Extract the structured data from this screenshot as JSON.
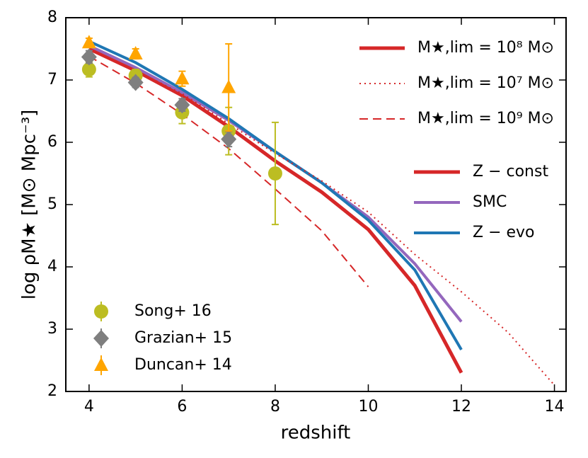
{
  "chart_data": {
    "type": "line",
    "xlabel": "redshift",
    "ylabel": "log  ρM★  [M⊙ Mpc⁻³]",
    "xlim": [
      3.5,
      14.25
    ],
    "ylim": [
      2,
      8
    ],
    "xticks": [
      4,
      6,
      8,
      10,
      12,
      14
    ],
    "yticks": [
      2,
      3,
      4,
      5,
      6,
      7,
      8
    ],
    "fiducial_label": "M★,lim = 10⁸ M⊙",
    "series": [
      {
        "name": "Z − const",
        "color": "#d62728",
        "linestyle": "solid",
        "linewidth": 5,
        "x": [
          4,
          5,
          6,
          7,
          8,
          9,
          10,
          11,
          12
        ],
        "values": [
          7.5,
          7.15,
          6.75,
          6.25,
          5.7,
          5.2,
          4.6,
          3.7,
          2.3
        ]
      },
      {
        "name": "SMC",
        "color": "#9467bd",
        "linestyle": "solid",
        "linewidth": 4,
        "x": [
          4,
          5,
          6,
          7,
          8,
          9,
          10,
          11,
          12
        ],
        "values": [
          7.55,
          7.2,
          6.8,
          6.35,
          5.85,
          5.35,
          4.8,
          4.05,
          3.12
        ]
      },
      {
        "name": "Z − evo",
        "color": "#1f77b4",
        "linestyle": "solid",
        "linewidth": 4,
        "x": [
          4,
          5,
          6,
          7,
          8,
          9,
          10,
          11,
          12
        ],
        "values": [
          7.62,
          7.28,
          6.85,
          6.38,
          5.85,
          5.35,
          4.75,
          3.95,
          2.67
        ]
      },
      {
        "name": "M★,lim = 10⁷ M⊙",
        "color": "#d62728",
        "linestyle": "dotted",
        "linewidth": 2,
        "x": [
          4,
          5,
          6,
          7,
          8,
          9,
          10,
          11,
          12,
          13,
          14
        ],
        "values": [
          7.5,
          7.15,
          6.78,
          6.3,
          5.82,
          5.38,
          4.88,
          4.2,
          3.6,
          2.95,
          2.1
        ]
      },
      {
        "name": "M★,lim = 10⁹ M⊙",
        "color": "#d62728",
        "linestyle": "dashed",
        "linewidth": 2,
        "x": [
          4,
          5,
          6,
          7,
          8,
          9,
          10
        ],
        "values": [
          7.38,
          6.95,
          6.45,
          5.9,
          5.25,
          4.58,
          3.68
        ]
      }
    ],
    "points": [
      {
        "name": "Song+ 16",
        "color": "#bcbd22",
        "marker": "circle",
        "x": [
          4,
          5,
          6,
          7,
          8
        ],
        "values": [
          7.17,
          7.07,
          6.48,
          6.18,
          5.5
        ],
        "yerr": [
          0.12,
          0.1,
          0.18,
          0.38,
          0.82
        ]
      },
      {
        "name": "Grazian+ 15",
        "color": "#7f7f7f",
        "marker": "diamond",
        "x": [
          4,
          5,
          6,
          7
        ],
        "values": [
          7.37,
          6.96,
          6.6,
          6.05
        ],
        "yerr": [
          0.1,
          0.08,
          0.1,
          0.12
        ]
      },
      {
        "name": "Duncan+ 14",
        "color": "#ffa500",
        "marker": "triangle",
        "x": [
          4,
          5,
          6,
          7
        ],
        "values": [
          7.6,
          7.42,
          7.02,
          6.88
        ],
        "yerr": [
          0.07,
          0.08,
          0.12,
          0.7
        ]
      }
    ]
  }
}
